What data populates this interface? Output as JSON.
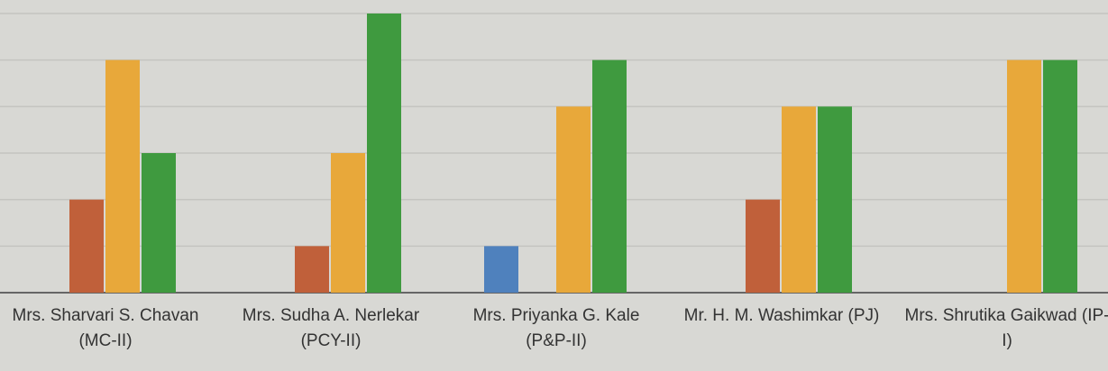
{
  "chart_data": {
    "type": "bar",
    "categories": [
      "Mrs. Sharvari S. Chavan (MC-II)",
      "Mrs. Sudha A. Nerlekar (PCY-II)",
      "Mrs. Priyanka G. Kale (P&P-II)",
      "Mr. H. M. Washimkar (PJ)",
      "Mrs. Shrutika Gaikwad (IP-I)"
    ],
    "series": [
      {
        "color": "#4f81bd",
        "values": [
          0,
          0,
          1,
          0,
          0
        ]
      },
      {
        "color": "#c0603a",
        "values": [
          2,
          1,
          0,
          2,
          0
        ]
      },
      {
        "color": "#e8a83a",
        "values": [
          5,
          3,
          4,
          4,
          5
        ]
      },
      {
        "color": "#3f9a3f",
        "values": [
          3,
          6,
          5,
          4,
          5
        ]
      }
    ],
    "ylim": [
      0,
      6
    ],
    "yticks": [
      0,
      1,
      2,
      3,
      4,
      5,
      6
    ],
    "grid": true
  }
}
